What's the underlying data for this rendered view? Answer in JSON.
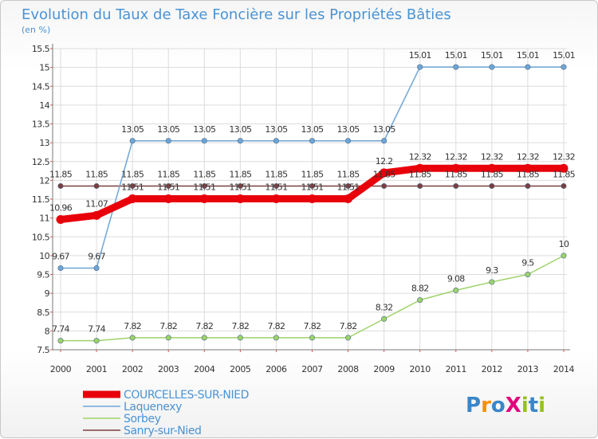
{
  "chart_data": {
    "type": "line",
    "title": "Evolution du Taux de Taxe Foncière sur les Propriétés Bâties",
    "subtitle": "(en %)",
    "x": [
      "2000",
      "2001",
      "2002",
      "2003",
      "2004",
      "2005",
      "2006",
      "2007",
      "2008",
      "2009",
      "2010",
      "2011",
      "2012",
      "2013",
      "2014"
    ],
    "ylim": [
      7.5,
      15.5
    ],
    "yticks": [
      "7.5",
      "8",
      "8.5",
      "9",
      "9.5",
      "10",
      "10.5",
      "11",
      "11.5",
      "12",
      "12.5",
      "13",
      "13.5",
      "14",
      "14.5",
      "15",
      "15.5"
    ],
    "grid": true,
    "legend_position": "bottom-left",
    "series": [
      {
        "name": "Sanry-sur-Nied",
        "color": "#7a3f3f",
        "values": [
          11.85,
          11.85,
          11.85,
          11.85,
          11.85,
          11.85,
          11.85,
          11.85,
          11.85,
          11.85,
          11.85,
          11.85,
          11.85,
          11.85,
          11.85
        ],
        "labels": [
          "11.85",
          "11.85",
          "11.85",
          "11.85",
          "11.85",
          "11.85",
          "11.85",
          "11.85",
          "11.85",
          "11.85",
          "11.85",
          "11.85",
          "11.85",
          "11.85",
          "11.85"
        ]
      },
      {
        "name": "Sorbey",
        "color": "#9ed36a",
        "values": [
          7.74,
          7.74,
          7.82,
          7.82,
          7.82,
          7.82,
          7.82,
          7.82,
          7.82,
          8.32,
          8.82,
          9.08,
          9.3,
          9.5,
          10
        ],
        "labels": [
          "7.74",
          "7.74",
          "7.82",
          "7.82",
          "7.82",
          "7.82",
          "7.82",
          "7.82",
          "7.82",
          "8.32",
          "8.82",
          "9.08",
          "9.3",
          "9.5",
          "10"
        ]
      },
      {
        "name": "Laquenexy",
        "color": "#6fa6d6",
        "values": [
          9.67,
          9.67,
          13.05,
          13.05,
          13.05,
          13.05,
          13.05,
          13.05,
          13.05,
          13.05,
          15.01,
          15.01,
          15.01,
          15.01,
          15.01
        ],
        "labels": [
          "9.67",
          "9.67",
          "13.05",
          "13.05",
          "13.05",
          "13.05",
          "13.05",
          "13.05",
          "13.05",
          "13.05",
          "15.01",
          "15.01",
          "15.01",
          "15.01",
          "15.01"
        ]
      },
      {
        "name": "COURCELLES-SUR-NIED",
        "color": "#e8000b",
        "values": [
          10.96,
          11.07,
          11.51,
          11.51,
          11.51,
          11.51,
          11.51,
          11.51,
          11.51,
          12.2,
          12.32,
          12.32,
          12.32,
          12.32,
          12.32
        ],
        "labels": [
          "10.96",
          "11.07",
          "11.51",
          "11.51",
          "11.51",
          "11.51",
          "11.51",
          "11.51",
          "11.51",
          "12.2",
          "12.32",
          "12.32",
          "12.32",
          "12.32",
          "12.32"
        ]
      }
    ]
  },
  "legend": [
    {
      "name": "COURCELLES-SUR-NIED",
      "color": "#e8000b"
    },
    {
      "name": "Laquenexy",
      "color": "#6fa6d6"
    },
    {
      "name": "Sorbey",
      "color": "#9ed36a"
    },
    {
      "name": "Sanry-sur-Nied",
      "color": "#7a3f3f"
    }
  ],
  "logo": {
    "text": "ProXiti",
    "letters": [
      "P",
      "r",
      "o",
      "X",
      "i",
      "t",
      "i"
    ],
    "colors": [
      "#3a86c8",
      "#f39200",
      "#3a86c8",
      "#e5007d",
      "#95c11f",
      "#3a86c8",
      "#95c11f"
    ]
  }
}
